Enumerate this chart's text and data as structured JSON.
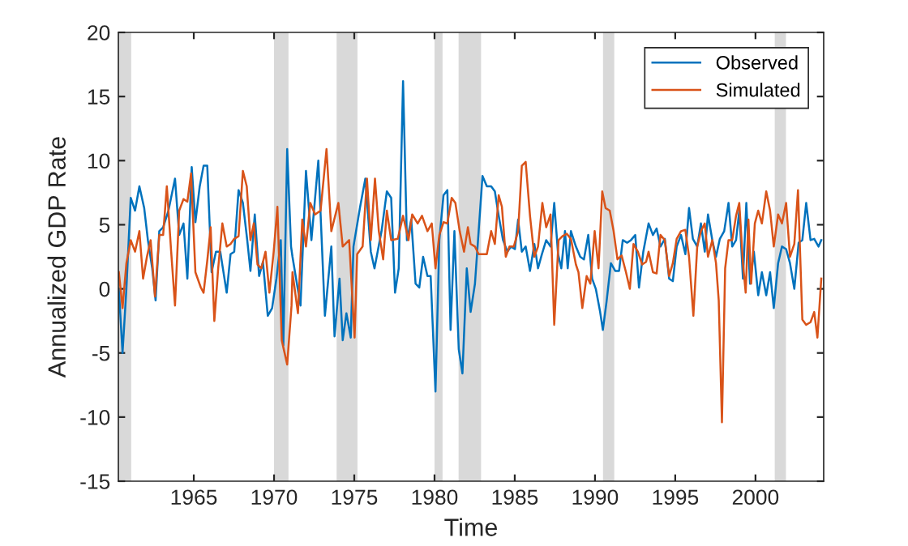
{
  "chart_data": {
    "type": "line",
    "xlabel": "Time",
    "ylabel": "Annualized GDP Rate",
    "xlim": [
      1960.3,
      2004.25
    ],
    "xticks": [
      1965,
      1970,
      1975,
      1980,
      1985,
      1990,
      1995,
      2000
    ],
    "ylim": [
      -15,
      20
    ],
    "yticks": [
      -15,
      -10,
      -5,
      0,
      5,
      10,
      15,
      20
    ],
    "grid": false,
    "legend": "top right",
    "bands": [
      {
        "axis": "x",
        "from": 1960.3,
        "to": 1961.1,
        "color": "#d9d9d9"
      },
      {
        "axis": "x",
        "from": 1970.0,
        "to": 1970.9,
        "color": "#d9d9d9"
      },
      {
        "axis": "x",
        "from": 1973.9,
        "to": 1975.2,
        "color": "#d9d9d9"
      },
      {
        "axis": "x",
        "from": 1980.0,
        "to": 1980.5,
        "color": "#d9d9d9"
      },
      {
        "axis": "x",
        "from": 1981.5,
        "to": 1982.9,
        "color": "#d9d9d9"
      },
      {
        "axis": "x",
        "from": 1990.5,
        "to": 1991.2,
        "color": "#d9d9d9"
      },
      {
        "axis": "x",
        "from": 2001.2,
        "to": 2001.9,
        "color": "#d9d9d9"
      }
    ],
    "series": [
      {
        "name": "Observed",
        "color": "#0072bd",
        "x": [
          1960.33,
          1960.56,
          1960.8,
          1961.07,
          1961.34,
          1961.61,
          1961.91,
          1962.14,
          1962.41,
          1962.62,
          1962.85,
          1963.09,
          1963.42,
          1963.83,
          1964.09,
          1964.36,
          1964.6,
          1964.87,
          1965.1,
          1965.37,
          1965.61,
          1965.84,
          1966.11,
          1966.38,
          1966.65,
          1967.05,
          1967.29,
          1967.52,
          1967.79,
          1968.06,
          1968.33,
          1968.53,
          1968.8,
          1969.07,
          1969.31,
          1969.61,
          1969.88,
          1970.15,
          1970.42,
          1970.58,
          1970.82,
          1971.06,
          1971.15,
          1971.65,
          1971.99,
          1972.33,
          1972.76,
          1973.17,
          1973.57,
          1973.77,
          1974.08,
          1974.28,
          1974.51,
          1974.78,
          1974.95,
          1975.35,
          1975.69,
          1976.03,
          1976.26,
          1976.7,
          1977.03,
          1977.3,
          1977.54,
          1977.77,
          1978.04,
          1978.28,
          1978.55,
          1978.82,
          1979.05,
          1979.29,
          1979.56,
          1979.76,
          1980.06,
          1980.3,
          1980.56,
          1980.8,
          1981.0,
          1981.24,
          1981.51,
          1981.74,
          1982.01,
          1982.25,
          1982.52,
          1982.75,
          1982.99,
          1983.26,
          1983.53,
          1983.76,
          1984.0,
          1984.27,
          1984.54,
          1984.77,
          1985.01,
          1985.21,
          1985.44,
          1985.68,
          1985.95,
          1986.22,
          1986.45,
          1986.69,
          1986.96,
          1987.23,
          1987.46,
          1987.7,
          1987.9,
          1988.13,
          1988.3,
          1988.5,
          1988.81,
          1989.08,
          1989.31,
          1989.58,
          1989.82,
          1990.05,
          1990.32,
          1990.49,
          1990.72,
          1990.99,
          1991.26,
          1991.5,
          1991.73,
          1992.0,
          1992.24,
          1992.51,
          1992.74,
          1993.01,
          1993.34,
          1993.61,
          1993.84,
          1994.08,
          1994.35,
          1994.62,
          1994.85,
          1995.09,
          1995.36,
          1995.63,
          1995.86,
          1996.1,
          1996.37,
          1996.6,
          1996.84,
          1997.04,
          1997.31,
          1997.54,
          1997.78,
          1998.05,
          1998.32,
          1998.55,
          1998.79,
          1998.99,
          1999.22,
          1999.43,
          1999.66,
          1999.9,
          2000.17,
          2000.4,
          2000.67,
          2000.91,
          2001.14,
          2001.41,
          2001.65,
          2001.91,
          2002.15,
          2002.42,
          2002.69,
          2002.92,
          2003.16,
          2003.43,
          2003.66,
          2003.93,
          2004.1
        ],
        "values": [
          0,
          -5,
          0,
          7.1,
          6.1,
          8,
          6.3,
          3.8,
          1.6,
          -0.9,
          4.5,
          4.8,
          6.1,
          8.6,
          4.2,
          5.1,
          0.8,
          9.5,
          5.2,
          8,
          9.6,
          9.6,
          1.3,
          2.9,
          2.9,
          -0.3,
          2.7,
          2.9,
          7.7,
          6.7,
          3.8,
          1.4,
          5.8,
          1,
          2.1,
          -2.1,
          -1.5,
          0.8,
          3.8,
          -4.4,
          10.9,
          3.3,
          2.5,
          -1.3,
          9.2,
          3.8,
          10,
          -2.1,
          3.3,
          -3.7,
          0.8,
          -4,
          -1.9,
          -3.8,
          3.3,
          6.3,
          8.6,
          2.9,
          1.6,
          4.5,
          7.6,
          7.1,
          -0.3,
          1.6,
          16.2,
          3.8,
          5.4,
          0.4,
          0.1,
          2.5,
          1,
          1,
          -8,
          3.8,
          7.3,
          7.7,
          -3.2,
          4.5,
          -4.7,
          -6.6,
          1.6,
          -1.8,
          0.4,
          4.5,
          8.8,
          8,
          8,
          7.6,
          5.7,
          3.8,
          2.9,
          3.3,
          3.1,
          5.4,
          2.9,
          3.3,
          1.4,
          3.5,
          1.6,
          2.7,
          3.8,
          3.3,
          6.7,
          2.7,
          1.6,
          4.5,
          1.6,
          4.5,
          3.3,
          2.5,
          2.3,
          4.2,
          0.8,
          0,
          -1.8,
          -3.2,
          -1,
          2,
          1.4,
          1.4,
          3.8,
          3.6,
          3.8,
          4.2,
          0.1,
          2.9,
          5.1,
          4.2,
          4.7,
          3.3,
          3.9,
          0.8,
          0.6,
          3.3,
          4.2,
          2.7,
          6.3,
          3.9,
          3.3,
          5.1,
          2.9,
          5.8,
          3.8,
          2.5,
          3.9,
          4.5,
          6.7,
          3.3,
          3.8,
          6.1,
          0.8,
          6.7,
          0.4,
          2.9,
          -0.5,
          1.3,
          -0.5,
          1.3,
          -1.5,
          2,
          3.3,
          3.1,
          2,
          0,
          3.6,
          3.8,
          6.7,
          3.8,
          3.9,
          3.3,
          3.8
        ]
      },
      {
        "name": "Simulated",
        "color": "#d95319",
        "x": [
          1960.33,
          1960.56,
          1960.8,
          1961.07,
          1961.34,
          1961.61,
          1961.84,
          1962.08,
          1962.31,
          1962.58,
          1962.85,
          1963.09,
          1963.32,
          1963.59,
          1963.83,
          1964.09,
          1964.36,
          1964.6,
          1964.83,
          1965.1,
          1965.44,
          1965.61,
          1965.84,
          1966.05,
          1966.28,
          1966.52,
          1966.78,
          1967.05,
          1967.29,
          1967.52,
          1967.79,
          1968.06,
          1968.3,
          1968.53,
          1968.74,
          1968.97,
          1969.21,
          1969.47,
          1969.71,
          1969.98,
          1970.21,
          1970.48,
          1970.82,
          1971.09,
          1971.15,
          1971.49,
          1971.76,
          1971.99,
          1972.26,
          1972.56,
          1972.9,
          1973.27,
          1973.57,
          1974.01,
          1974.28,
          1974.68,
          1975.02,
          1975.18,
          1975.52,
          1975.79,
          1976.03,
          1976.29,
          1976.53,
          1976.8,
          1977.03,
          1977.3,
          1977.71,
          1978.04,
          1978.38,
          1978.61,
          1978.95,
          1979.22,
          1979.56,
          1979.83,
          1980.06,
          1980.3,
          1980.56,
          1980.8,
          1981.07,
          1981.3,
          1981.57,
          1981.84,
          1982.08,
          1982.25,
          1982.52,
          1982.75,
          1982.99,
          1983.26,
          1983.53,
          1983.76,
          1984.0,
          1984.2,
          1984.44,
          1984.67,
          1984.94,
          1985.21,
          1985.44,
          1985.68,
          1985.95,
          1986.22,
          1986.45,
          1986.72,
          1986.96,
          1987.23,
          1987.46,
          1987.73,
          1987.97,
          1988.24,
          1988.5,
          1988.81,
          1988.97,
          1989.21,
          1989.48,
          1989.71,
          1989.98,
          1990.22,
          1990.45,
          1990.66,
          1990.92,
          1991.16,
          1991.4,
          1991.66,
          1991.93,
          1992.17,
          1992.4,
          1992.67,
          1992.94,
          1993.18,
          1993.34,
          1993.61,
          1993.84,
          1994.08,
          1994.35,
          1994.62,
          1994.85,
          1995.09,
          1995.36,
          1995.63,
          1995.86,
          1996.13,
          1996.37,
          1996.6,
          1996.84,
          1997.04,
          1997.31,
          1997.54,
          1997.71,
          1997.91,
          1998.11,
          1998.32,
          1998.55,
          1998.79,
          1998.99,
          1999.22,
          1999.39,
          1999.56,
          1999.73,
          1999.96,
          2000.17,
          2000.4,
          2000.67,
          2000.91,
          2001.14,
          2001.41,
          2001.65,
          2001.91,
          2002.15,
          2002.42,
          2002.65,
          2002.92,
          2003.16,
          2003.43,
          2003.66,
          2003.86,
          2004.1
        ],
        "values": [
          1.3,
          -1.5,
          2,
          3.8,
          2.9,
          4.5,
          0.8,
          2.5,
          3.8,
          -0.6,
          4.2,
          4.2,
          8,
          2.9,
          -1.3,
          6.1,
          7,
          6.8,
          9,
          1.3,
          0.1,
          -0.3,
          2.2,
          4.8,
          -2.5,
          1.6,
          5.1,
          3.3,
          3.5,
          3.9,
          4.1,
          9.2,
          8,
          3.8,
          5.1,
          1.9,
          1.6,
          2.9,
          -0.3,
          2.9,
          6.4,
          -4,
          -5.9,
          -1.3,
          1.3,
          -1.9,
          5.4,
          3.3,
          6.7,
          5.8,
          6.1,
          10.9,
          4.5,
          6.7,
          3.3,
          3.8,
          -3.8,
          2.7,
          3.3,
          8.6,
          3.8,
          8.6,
          4.5,
          2.3,
          6.1,
          3.8,
          3.9,
          5.7,
          3.8,
          5.8,
          5.1,
          5.7,
          4.5,
          5.1,
          1.6,
          4.2,
          5.2,
          5.1,
          7.1,
          6.7,
          4.5,
          2.9,
          4.8,
          3.5,
          3.3,
          2.7,
          2.7,
          2.7,
          4.5,
          3.5,
          7.3,
          6.4,
          2.5,
          3.3,
          3.3,
          4.5,
          9.6,
          9.9,
          5.7,
          2.5,
          3.3,
          6.7,
          4.8,
          5.8,
          -2.8,
          3.8,
          4.1,
          4.3,
          3.9,
          1.9,
          1.3,
          -1.5,
          1,
          0.4,
          4.5,
          1.6,
          7.6,
          6.3,
          6.1,
          4.5,
          2.3,
          2.6,
          1.3,
          0,
          3.5,
          2.9,
          1.9,
          2.1,
          2.9,
          1.3,
          1.2,
          4.2,
          3.8,
          1,
          2,
          3.9,
          4.5,
          4.6,
          2.5,
          -2.1,
          3.3,
          4.5,
          5.1,
          2.5,
          3.8,
          2,
          -0.9,
          -10.4,
          1.6,
          3.8,
          3.8,
          5.7,
          6.7,
          2,
          -0.3,
          5.4,
          0.4,
          5.1,
          6.1,
          5.1,
          7.6,
          6.1,
          3.3,
          5.8,
          5.1,
          6.7,
          2.5,
          3.5,
          7.7,
          -2.4,
          -2.8,
          -2.6,
          -1.8,
          -3.8,
          0.8
        ]
      }
    ]
  }
}
